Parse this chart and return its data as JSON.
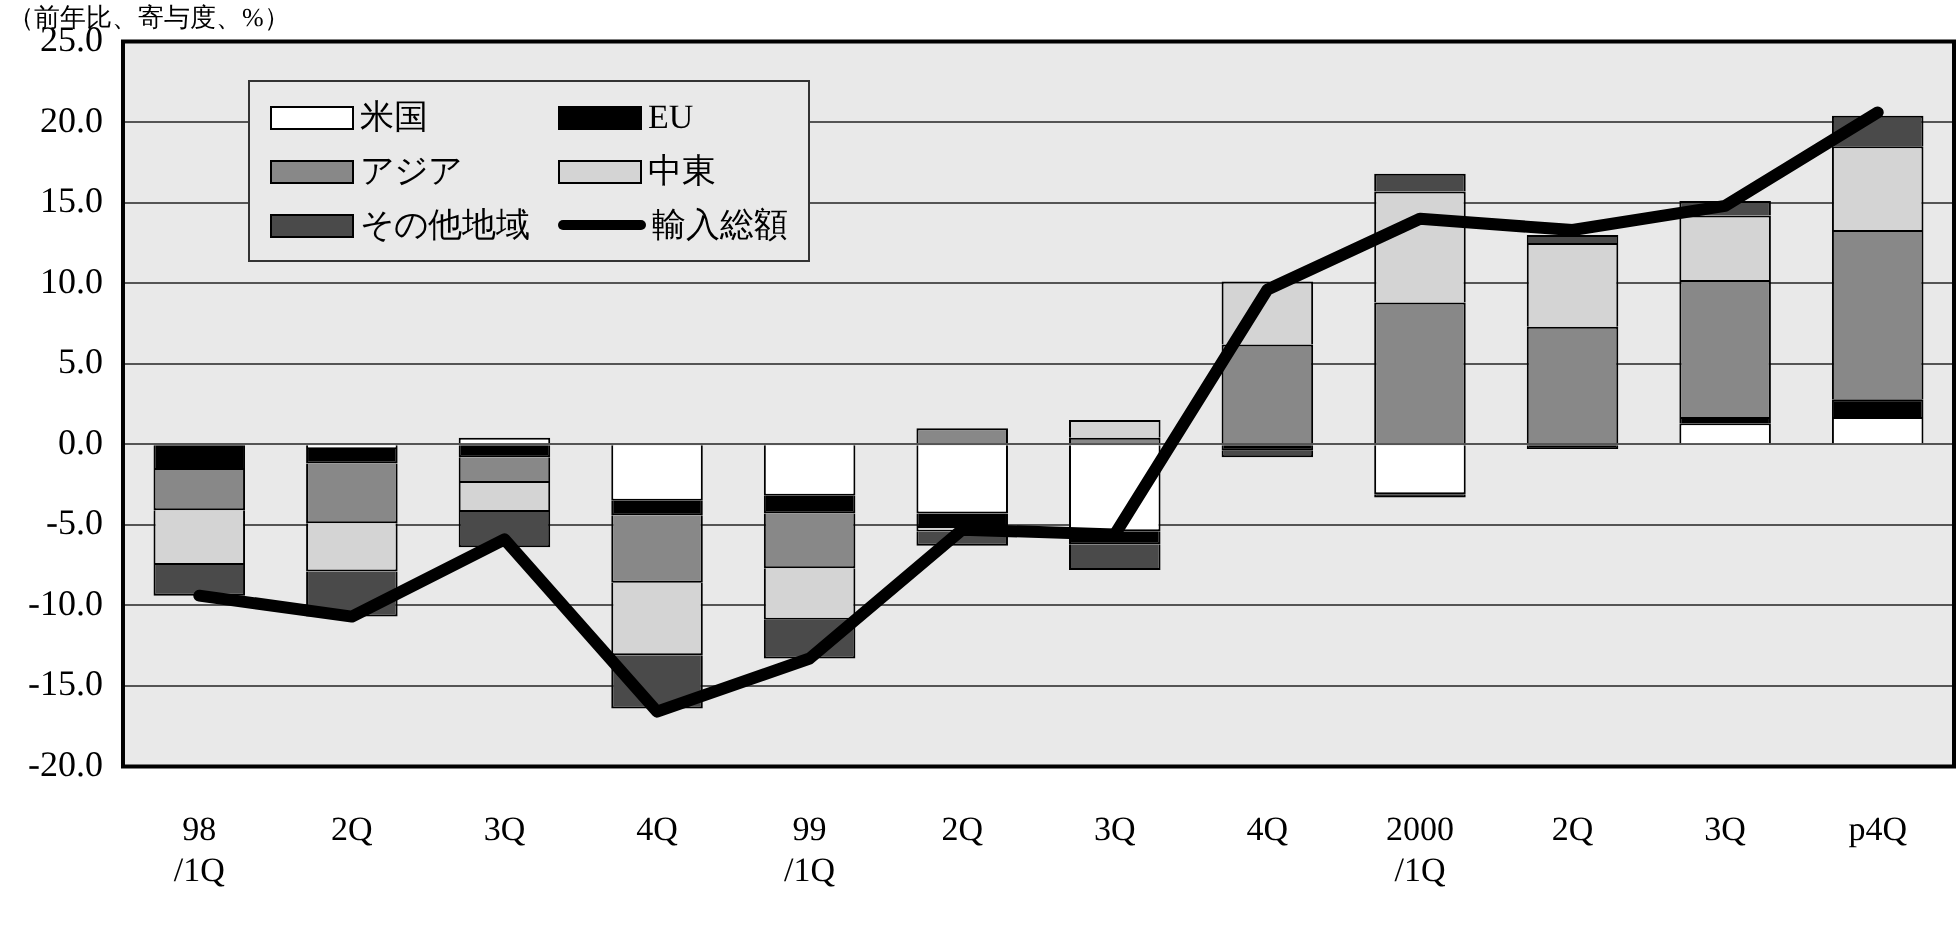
{
  "chart_data": {
    "type": "bar",
    "stacked": true,
    "ylabel": "（前年比、寄与度、%）",
    "categories": [
      "98\n/1Q",
      "2Q",
      "3Q",
      "4Q",
      "99\n/1Q",
      "2Q",
      "3Q",
      "4Q",
      "2000\n/1Q",
      "2Q",
      "3Q",
      "p4Q"
    ],
    "series": [
      {
        "name": "米国",
        "color": "#ffffff",
        "values": [
          0,
          -0.3,
          0.4,
          -3.5,
          -3.2,
          -4.3,
          -5.4,
          0,
          -3.1,
          0,
          1.3,
          1.7
        ]
      },
      {
        "name": "EU",
        "color": "#000000",
        "values": [
          -1.6,
          -0.9,
          -0.8,
          -0.9,
          -1.1,
          -0.9,
          -0.8,
          -0.4,
          -0.2,
          -0.3,
          0.4,
          1.1
        ]
      },
      {
        "name": "アジア",
        "color": "#888888",
        "values": [
          -2.5,
          -3.7,
          -1.6,
          -4.2,
          -3.4,
          1.0,
          0.4,
          6.2,
          8.8,
          7.3,
          8.5,
          10.5
        ]
      },
      {
        "name": "中東",
        "color": "#d4d4d4",
        "values": [
          -3.4,
          -3.0,
          -1.8,
          -4.5,
          -3.2,
          -0.2,
          1.1,
          3.9,
          6.9,
          5.2,
          4.0,
          5.2
        ]
      },
      {
        "name": "その他地域",
        "color": "#4a4a4a",
        "values": [
          -1.9,
          -2.8,
          -2.2,
          -3.3,
          -2.4,
          -0.9,
          -1.6,
          -0.4,
          1.1,
          0.5,
          0.9,
          1.9
        ]
      },
      {
        "name": "輸入総額",
        "type": "line",
        "color": "#000000",
        "values": [
          -9.4,
          -10.7,
          -5.9,
          -16.6,
          -13.3,
          -5.3,
          -5.6,
          9.6,
          14.0,
          13.3,
          14.8,
          20.6
        ]
      }
    ],
    "ylim": [
      -20,
      25
    ],
    "yticks": [
      {
        "value": -20,
        "label": "-20.0"
      },
      {
        "value": -15,
        "label": "-15.0"
      },
      {
        "value": -10,
        "label": "-10.0"
      },
      {
        "value": -5,
        "label": "-5.0"
      },
      {
        "value": 0,
        "label": "0.0"
      },
      {
        "value": 5,
        "label": "5.0"
      },
      {
        "value": 10,
        "label": "10.0"
      },
      {
        "value": 15,
        "label": "15.0"
      },
      {
        "value": 20,
        "label": "20.0"
      },
      {
        "value": 25,
        "label": "25.0"
      }
    ],
    "grid": "y",
    "legend": "top left",
    "marker": "none"
  }
}
